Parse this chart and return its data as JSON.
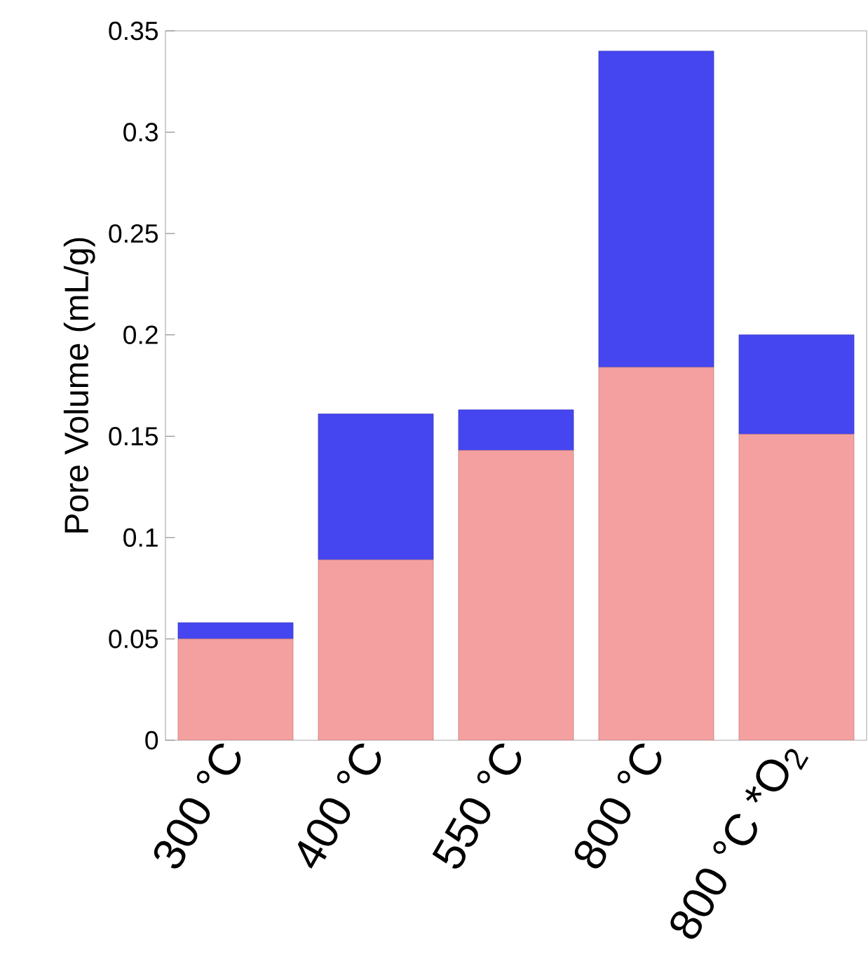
{
  "chart_data": {
    "type": "bar",
    "stacked": true,
    "ylabel": "Pore Volume (mL/g)",
    "categories": [
      "300 °C",
      "400 °C",
      "550 °C",
      "800 °C",
      "800 °C *O$_{2}$"
    ],
    "series": [
      {
        "color": "#f5a0a0",
        "values": [
          0.05,
          0.089,
          0.143,
          0.184,
          0.151
        ]
      },
      {
        "color": "#4646f0",
        "values": [
          0.008,
          0.072,
          0.02,
          0.156,
          0.049
        ]
      }
    ],
    "ylim": [
      0,
      0.35
    ],
    "yticks": [
      0,
      0.05,
      0.1,
      0.15,
      0.2,
      0.25,
      0.3,
      0.35
    ],
    "grid": false
  }
}
